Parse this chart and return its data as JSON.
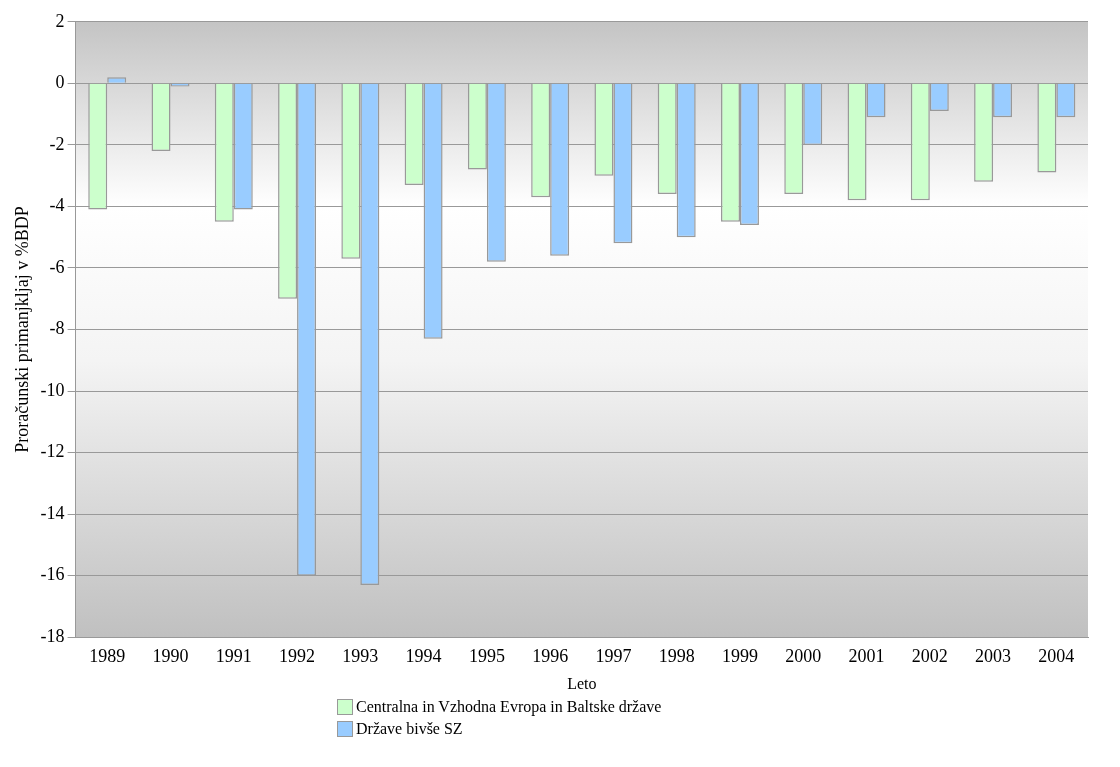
{
  "chart_data": {
    "type": "bar",
    "xlabel": "Leto",
    "ylabel": "Proračunski primanjkljaj v %BDP",
    "categories": [
      "1989",
      "1990",
      "1991",
      "1992",
      "1993",
      "1994",
      "1995",
      "1996",
      "1997",
      "1998",
      "1999",
      "2000",
      "2001",
      "2002",
      "2003",
      "2004"
    ],
    "series": [
      {
        "name": "Centralna in Vzhodna Evropa in Baltske države",
        "color": "#ccffcc",
        "values": [
          -4.1,
          -2.2,
          -4.5,
          -7.0,
          -5.7,
          -3.3,
          -2.8,
          -3.7,
          -3.0,
          -3.6,
          -4.5,
          -3.6,
          -3.8,
          -3.8,
          -3.2,
          -2.9
        ]
      },
      {
        "name": "Države bivše SZ",
        "color": "#99ccff",
        "values": [
          0.2,
          -0.1,
          -4.1,
          -16.0,
          -16.3,
          -8.3,
          -5.8,
          -5.6,
          -5.2,
          -5.0,
          -4.6,
          -2.0,
          -1.1,
          -0.9,
          -1.1,
          -1.1
        ]
      }
    ],
    "ylim": [
      -18,
      2
    ],
    "yticks": [
      -18,
      -16,
      -14,
      -12,
      -10,
      -8,
      -6,
      -4,
      -2,
      0,
      2
    ],
    "grid": "y",
    "legend": "bottom"
  }
}
